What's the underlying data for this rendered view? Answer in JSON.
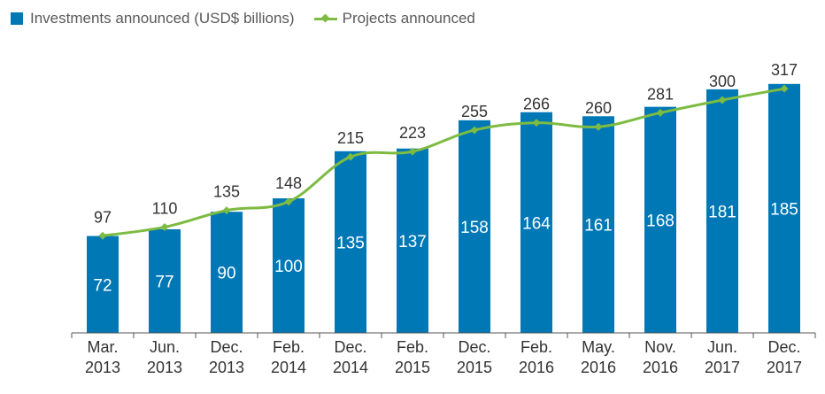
{
  "legend": {
    "investments": "Investments announced (USD$ billions)",
    "projects": "Projects announced"
  },
  "colors": {
    "bar": "#0078b6",
    "line": "#7dbb42",
    "axis": "#555555"
  },
  "chart_data": {
    "type": "bar",
    "categories": [
      [
        "Mar.",
        "2013"
      ],
      [
        "Jun.",
        "2013"
      ],
      [
        "Dec.",
        "2013"
      ],
      [
        "Feb.",
        "2014"
      ],
      [
        "Dec.",
        "2014"
      ],
      [
        "Feb.",
        "2015"
      ],
      [
        "Dec.",
        "2015"
      ],
      [
        "Feb.",
        "2016"
      ],
      [
        "May.",
        "2016"
      ],
      [
        "Nov.",
        "2016"
      ],
      [
        "Jun.",
        "2017"
      ],
      [
        "Dec.",
        "2017"
      ]
    ],
    "series": [
      {
        "name": "Investments announced (USD$ billions)",
        "type": "bar",
        "values": [
          72,
          77,
          90,
          100,
          135,
          137,
          158,
          164,
          161,
          168,
          181,
          185
        ]
      },
      {
        "name": "Projects announced",
        "type": "line",
        "values": [
          97,
          110,
          135,
          148,
          215,
          223,
          255,
          266,
          260,
          281,
          300,
          317
        ]
      }
    ],
    "legend_position": "top-left",
    "grid": false
  }
}
